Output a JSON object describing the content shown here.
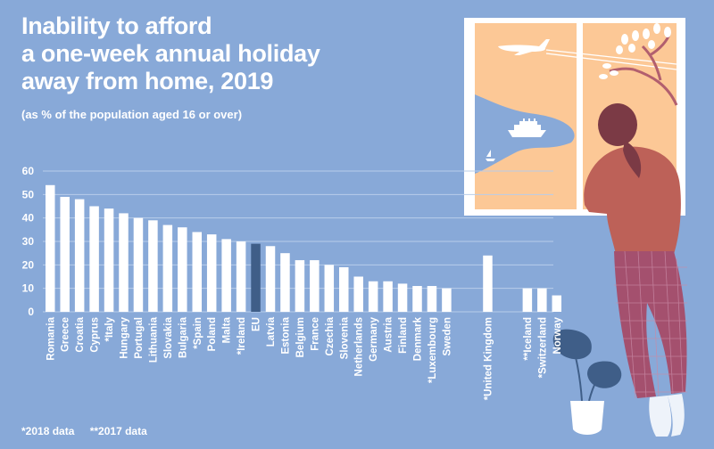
{
  "header": {
    "title_lines": [
      "Inability to afford",
      "a one-week annual holiday",
      "away from home, 2019"
    ],
    "subtitle": "(as % of the population aged 16 or over)"
  },
  "footnotes": [
    "*2018 data",
    "**2017 data"
  ],
  "colors": {
    "background": "#88a9d8",
    "bar": "#ffffff",
    "highlight_bar": "#3f5e88",
    "gridline": "#b8cdea"
  },
  "chart_data": {
    "type": "bar",
    "title": "Inability to afford a one-week annual holiday away from home, 2019",
    "subtitle": "(as % of the population aged 16 or over)",
    "xlabel": "",
    "ylabel": "",
    "ylim": [
      0,
      60
    ],
    "yticks": [
      0,
      10,
      20,
      30,
      40,
      50,
      60
    ],
    "grid": true,
    "legend": "none",
    "highlight": "EU",
    "groups": [
      {
        "categories": [
          "Romania",
          "Greece",
          "Croatia",
          "Cyprus",
          "*Italy",
          "Hungary",
          "Portugal",
          "Lithuania",
          "Slovakia",
          "Bulgaria",
          "*Spain",
          "Poland",
          "Malta",
          "*Ireland",
          "EU",
          "Latvia",
          "Estonia",
          "Belgium",
          "France",
          "Czechia",
          "Slovenia",
          "Netherlands",
          "Germany",
          "Austria",
          "Finland",
          "Denmark",
          "*Luxembourg",
          "Sweden"
        ],
        "values": [
          54,
          49,
          48,
          45,
          44,
          42,
          40,
          39,
          37,
          36,
          34,
          33,
          31,
          30,
          29,
          28,
          25,
          22,
          22,
          20,
          19,
          15,
          13,
          13,
          12,
          11,
          11,
          10
        ]
      },
      {
        "categories": [
          "*United Kingdom"
        ],
        "values": [
          24
        ]
      },
      {
        "categories": [
          "**Iceland",
          "*Switzerland",
          "Norway"
        ],
        "values": [
          10,
          10,
          7
        ]
      }
    ]
  },
  "illustration": {
    "description": "woman looking out of a window at a plane, ship, sailboat and tree; potted monstera plant"
  }
}
